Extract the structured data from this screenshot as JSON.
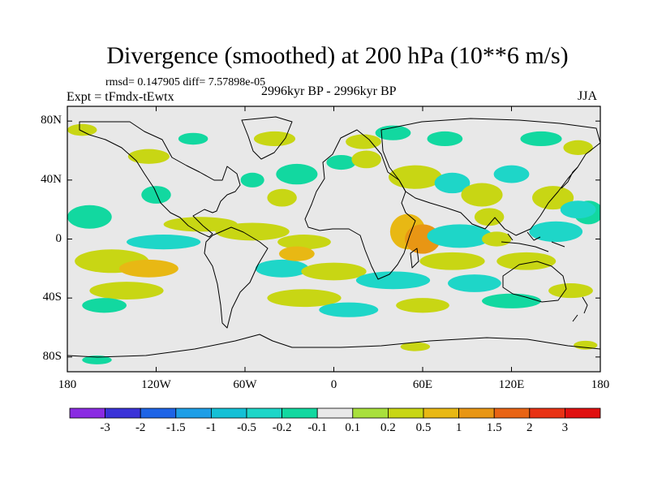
{
  "title": "Divergence (smoothed) at 200 hPa (10**6 m/s)",
  "stats": "rmsd= 0.147905  diff= 7.57898e-05",
  "experiment": "Expt = tFmdx-tEwtx",
  "period": "2996kyr BP - 2996kyr BP",
  "season": "JJA",
  "lat_ticks": [
    {
      "label": "80N",
      "lat": 80
    },
    {
      "label": "40N",
      "lat": 40
    },
    {
      "label": "0",
      "lat": 0
    },
    {
      "label": "40S",
      "lat": -40
    },
    {
      "label": "80S",
      "lat": -80
    }
  ],
  "lon_ticks": [
    {
      "label": "180",
      "lon": -180
    },
    {
      "label": "120W",
      "lon": -120
    },
    {
      "label": "60W",
      "lon": -60
    },
    {
      "label": "0",
      "lon": 0
    },
    {
      "label": "60E",
      "lon": 60
    },
    {
      "label": "120E",
      "lon": 120
    },
    {
      "label": "180",
      "lon": 180
    }
  ],
  "colorbar": {
    "colors": [
      "#8a2be2",
      "#3a32d8",
      "#1e64e6",
      "#1e9ee6",
      "#14c0d6",
      "#1ed6c8",
      "#12d8a0",
      "#e8e8e8",
      "#a8e03c",
      "#c8d614",
      "#e8b814",
      "#e89614",
      "#e86414",
      "#e83214",
      "#e01010"
    ],
    "labels": [
      "-3",
      "-2",
      "-1.5",
      "-1",
      "-0.5",
      "-0.2",
      "-0.1",
      "0.1",
      "0.2",
      "0.5",
      "1",
      "1.5",
      "2",
      "3"
    ]
  },
  "anomaly_cells": [
    {
      "lon": -170,
      "lat": 74,
      "rlon": 10,
      "rlat": 4,
      "value": 0.2
    },
    {
      "lon": -125,
      "lat": 56,
      "rlon": 14,
      "rlat": 5,
      "value": 0.2
    },
    {
      "lon": -95,
      "lat": 68,
      "rlon": 10,
      "rlat": 4,
      "value": -0.2
    },
    {
      "lon": -40,
      "lat": 68,
      "rlon": 14,
      "rlat": 5,
      "value": 0.2
    },
    {
      "lon": 20,
      "lat": 66,
      "rlon": 12,
      "rlat": 5,
      "value": 0.2
    },
    {
      "lon": 5,
      "lat": 52,
      "rlon": 10,
      "rlat": 5,
      "value": -0.2
    },
    {
      "lon": 40,
      "lat": 72,
      "rlon": 12,
      "rlat": 5,
      "value": -0.2
    },
    {
      "lon": 75,
      "lat": 68,
      "rlon": 12,
      "rlat": 5,
      "value": -0.2
    },
    {
      "lon": 140,
      "lat": 68,
      "rlon": 14,
      "rlat": 5,
      "value": -0.2
    },
    {
      "lon": 165,
      "lat": 62,
      "rlon": 10,
      "rlat": 5,
      "value": 0.2
    },
    {
      "lon": -120,
      "lat": 30,
      "rlon": 10,
      "rlat": 6,
      "value": -0.2
    },
    {
      "lon": -55,
      "lat": 40,
      "rlon": 8,
      "rlat": 5,
      "value": -0.2
    },
    {
      "lon": -25,
      "lat": 44,
      "rlon": 14,
      "rlat": 7,
      "value": -0.2
    },
    {
      "lon": -35,
      "lat": 28,
      "rlon": 10,
      "rlat": 6,
      "value": 0.2
    },
    {
      "lon": 22,
      "lat": 54,
      "rlon": 10,
      "rlat": 6,
      "value": 0.2
    },
    {
      "lon": 55,
      "lat": 42,
      "rlon": 18,
      "rlat": 8,
      "value": 0.3
    },
    {
      "lon": 80,
      "lat": 38,
      "rlon": 12,
      "rlat": 7,
      "value": -0.3
    },
    {
      "lon": 100,
      "lat": 30,
      "rlon": 14,
      "rlat": 8,
      "value": 0.3
    },
    {
      "lon": 120,
      "lat": 44,
      "rlon": 12,
      "rlat": 6,
      "value": -0.3
    },
    {
      "lon": 148,
      "lat": 28,
      "rlon": 14,
      "rlat": 8,
      "value": 0.3
    },
    {
      "lon": 172,
      "lat": 18,
      "rlon": 10,
      "rlat": 8,
      "value": -0.2
    },
    {
      "lon": -165,
      "lat": 15,
      "rlon": 15,
      "rlat": 8,
      "value": -0.2
    },
    {
      "lon": -150,
      "lat": -15,
      "rlon": 25,
      "rlat": 8,
      "value": 0.4
    },
    {
      "lon": -125,
      "lat": -20,
      "rlon": 20,
      "rlat": 6,
      "value": 0.6
    },
    {
      "lon": -115,
      "lat": -2,
      "rlon": 25,
      "rlat": 5,
      "value": -0.4
    },
    {
      "lon": -90,
      "lat": 10,
      "rlon": 25,
      "rlat": 5,
      "value": 0.3
    },
    {
      "lon": -55,
      "lat": 5,
      "rlon": 25,
      "rlat": 6,
      "value": 0.3
    },
    {
      "lon": -20,
      "lat": -2,
      "rlon": 18,
      "rlat": 5,
      "value": 0.4
    },
    {
      "lon": -35,
      "lat": -20,
      "rlon": 18,
      "rlat": 6,
      "value": -0.5
    },
    {
      "lon": -25,
      "lat": -10,
      "rlon": 12,
      "rlat": 5,
      "value": 0.8
    },
    {
      "lon": 0,
      "lat": -22,
      "rlon": 22,
      "rlat": 6,
      "value": 0.4
    },
    {
      "lon": 40,
      "lat": -28,
      "rlon": 25,
      "rlat": 6,
      "value": -0.4
    },
    {
      "lon": 50,
      "lat": 5,
      "rlon": 12,
      "rlat": 12,
      "value": 0.5
    },
    {
      "lon": 60,
      "lat": 0,
      "rlon": 12,
      "rlat": 10,
      "value": 1.1
    },
    {
      "lon": 85,
      "lat": 2,
      "rlon": 22,
      "rlat": 8,
      "value": -0.4
    },
    {
      "lon": 105,
      "lat": 15,
      "rlon": 10,
      "rlat": 6,
      "value": 0.4
    },
    {
      "lon": 110,
      "lat": 0,
      "rlon": 10,
      "rlat": 5,
      "value": 0.3
    },
    {
      "lon": 130,
      "lat": -15,
      "rlon": 20,
      "rlat": 6,
      "value": 0.3
    },
    {
      "lon": 150,
      "lat": 5,
      "rlon": 18,
      "rlat": 7,
      "value": -0.3
    },
    {
      "lon": 165,
      "lat": 20,
      "rlon": 12,
      "rlat": 6,
      "value": -0.3
    },
    {
      "lon": 80,
      "lat": -15,
      "rlon": 22,
      "rlat": 6,
      "value": 0.4
    },
    {
      "lon": 95,
      "lat": -30,
      "rlon": 18,
      "rlat": 6,
      "value": -0.4
    },
    {
      "lon": -140,
      "lat": -35,
      "rlon": 25,
      "rlat": 6,
      "value": 0.4
    },
    {
      "lon": -155,
      "lat": -45,
      "rlon": 15,
      "rlat": 5,
      "value": -0.2
    },
    {
      "lon": -20,
      "lat": -40,
      "rlon": 25,
      "rlat": 6,
      "value": 0.4
    },
    {
      "lon": 10,
      "lat": -48,
      "rlon": 20,
      "rlat": 5,
      "value": -0.3
    },
    {
      "lon": 60,
      "lat": -45,
      "rlon": 18,
      "rlat": 5,
      "value": 0.4
    },
    {
      "lon": 120,
      "lat": -42,
      "rlon": 20,
      "rlat": 5,
      "value": -0.2
    },
    {
      "lon": 160,
      "lat": -35,
      "rlon": 15,
      "rlat": 5,
      "value": 0.3
    },
    {
      "lon": -160,
      "lat": -82,
      "rlon": 10,
      "rlat": 3,
      "value": -0.2
    },
    {
      "lon": 55,
      "lat": -73,
      "rlon": 10,
      "rlat": 3,
      "value": 0.3
    },
    {
      "lon": 170,
      "lat": -72,
      "rlon": 8,
      "rlat": 3,
      "value": 0.2
    }
  ]
}
